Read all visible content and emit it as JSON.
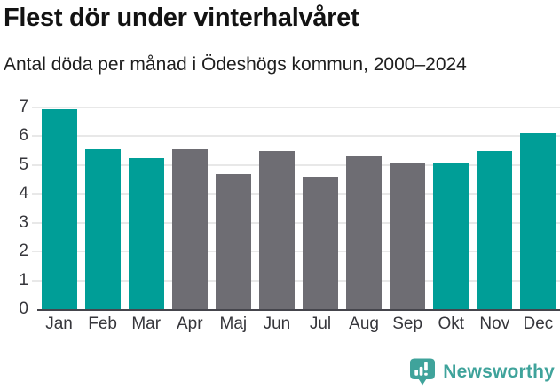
{
  "chart_data": {
    "type": "bar",
    "title": "Flest dör under vinterhalvåret",
    "subtitle": "Antal döda per månad i Ödeshögs kommun, 2000–2024",
    "categories": [
      "Jan",
      "Feb",
      "Mar",
      "Apr",
      "Maj",
      "Jun",
      "Jul",
      "Aug",
      "Sep",
      "Okt",
      "Nov",
      "Dec"
    ],
    "values": [
      6.95,
      5.55,
      5.25,
      5.55,
      4.7,
      5.5,
      4.6,
      5.3,
      5.1,
      5.1,
      5.5,
      6.1
    ],
    "colors": [
      "#009e97",
      "#009e97",
      "#009e97",
      "#6e6d73",
      "#6e6d73",
      "#6e6d73",
      "#6e6d73",
      "#6e6d73",
      "#6e6d73",
      "#009e97",
      "#009e97",
      "#009e97"
    ],
    "highlight_color": "#009e97",
    "base_color": "#6e6d73",
    "xlabel": "",
    "ylabel": "",
    "ylim": [
      0,
      7
    ],
    "yticks": [
      0,
      1,
      2,
      3,
      4,
      5,
      6,
      7
    ],
    "grid": true,
    "legend": false
  },
  "footer": {
    "brand": "Newsworthy",
    "brand_color": "#3fa39b",
    "icon": "newsworthy-bubble-chart-icon"
  }
}
